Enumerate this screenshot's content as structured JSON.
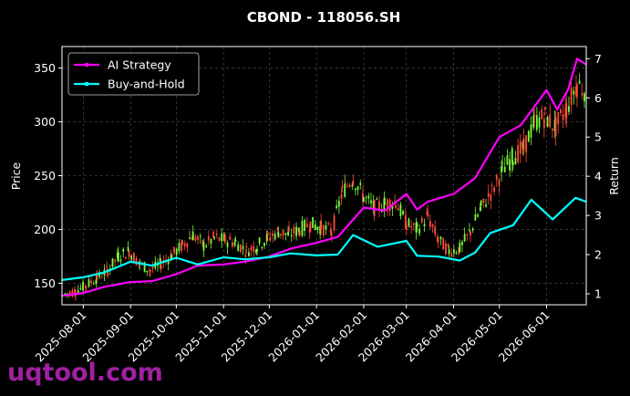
{
  "watermark": "uqtool.com",
  "chart_data": {
    "type": "line",
    "title": "CBOND - 118056.SH",
    "xlabel": "",
    "ylabel": "Price",
    "y2label": "Return",
    "background": "#000000",
    "grid": true,
    "legend_position": "top-left",
    "x_ticks": [
      "2025-08-01",
      "2025-09-01",
      "2025-10-01",
      "2025-11-01",
      "2025-12-01",
      "2026-01-01",
      "2026-02-01",
      "2026-03-01",
      "2026-04-01",
      "2026-05-01",
      "2026-06-01"
    ],
    "y_ticks": [
      150,
      200,
      250,
      300,
      350
    ],
    "y2_ticks": [
      1,
      2,
      3,
      4,
      5,
      6,
      7
    ],
    "xlim": [
      "2025-07-18",
      "2026-06-27"
    ],
    "ylim": [
      130,
      370
    ],
    "y2lim": [
      0.72,
      7.31
    ],
    "candlestick": {
      "up_color": "#7cfc3a",
      "down_color": "#ff4a3a",
      "close": [
        [
          "2025-07-20",
          140
        ],
        [
          "2025-07-27",
          143
        ],
        [
          "2025-08-03",
          148
        ],
        [
          "2025-08-10",
          155
        ],
        [
          "2025-08-17",
          162
        ],
        [
          "2025-08-24",
          175
        ],
        [
          "2025-08-31",
          180
        ],
        [
          "2025-09-07",
          168
        ],
        [
          "2025-09-14",
          162
        ],
        [
          "2025-09-21",
          168
        ],
        [
          "2025-09-28",
          176
        ],
        [
          "2025-10-05",
          185
        ],
        [
          "2025-10-12",
          195
        ],
        [
          "2025-10-19",
          185
        ],
        [
          "2025-10-26",
          192
        ],
        [
          "2025-11-02",
          190
        ],
        [
          "2025-11-09",
          188
        ],
        [
          "2025-11-16",
          180
        ],
        [
          "2025-11-23",
          185
        ],
        [
          "2025-11-30",
          192
        ],
        [
          "2025-12-07",
          198
        ],
        [
          "2025-12-14",
          195
        ],
        [
          "2025-12-21",
          200
        ],
        [
          "2025-12-28",
          205
        ],
        [
          "2026-01-04",
          202
        ],
        [
          "2026-01-11",
          198
        ],
        [
          "2026-01-18",
          235
        ],
        [
          "2026-01-25",
          248
        ],
        [
          "2026-02-01",
          230
        ],
        [
          "2026-02-08",
          220
        ],
        [
          "2026-02-15",
          224
        ],
        [
          "2026-02-22",
          226
        ],
        [
          "2026-03-01",
          205
        ],
        [
          "2026-03-08",
          200
        ],
        [
          "2026-03-15",
          212
        ],
        [
          "2026-03-22",
          190
        ],
        [
          "2026-03-29",
          180
        ],
        [
          "2026-04-05",
          182
        ],
        [
          "2026-04-12",
          198
        ],
        [
          "2026-04-19",
          220
        ],
        [
          "2026-04-26",
          235
        ],
        [
          "2026-05-03",
          255
        ],
        [
          "2026-05-10",
          268
        ],
        [
          "2026-05-17",
          275
        ],
        [
          "2026-05-24",
          300
        ],
        [
          "2026-05-31",
          305
        ],
        [
          "2026-06-07",
          295
        ],
        [
          "2026-06-14",
          312
        ],
        [
          "2026-06-21",
          335
        ],
        [
          "2026-06-26",
          330
        ]
      ]
    },
    "series": [
      {
        "name": "AI Strategy",
        "color": "#ff00ff",
        "axis": "right",
        "points": [
          [
            "2025-07-18",
            0.95
          ],
          [
            "2025-08-01",
            1.02
          ],
          [
            "2025-08-15",
            1.18
          ],
          [
            "2025-09-01",
            1.3
          ],
          [
            "2025-09-15",
            1.32
          ],
          [
            "2025-10-01",
            1.5
          ],
          [
            "2025-10-15",
            1.72
          ],
          [
            "2025-11-01",
            1.75
          ],
          [
            "2025-11-15",
            1.82
          ],
          [
            "2025-12-01",
            1.95
          ],
          [
            "2025-12-15",
            2.15
          ],
          [
            "2026-01-01",
            2.3
          ],
          [
            "2026-01-15",
            2.45
          ],
          [
            "2026-02-01",
            3.2
          ],
          [
            "2026-02-15",
            3.12
          ],
          [
            "2026-03-01",
            3.55
          ],
          [
            "2026-03-08",
            3.15
          ],
          [
            "2026-03-15",
            3.35
          ],
          [
            "2026-04-01",
            3.55
          ],
          [
            "2026-04-15",
            3.95
          ],
          [
            "2026-05-01",
            5.0
          ],
          [
            "2026-05-15",
            5.3
          ],
          [
            "2026-06-01",
            6.2
          ],
          [
            "2026-06-08",
            5.7
          ],
          [
            "2026-06-15",
            6.2
          ],
          [
            "2026-06-21",
            7.0
          ],
          [
            "2026-06-27",
            6.85
          ]
        ]
      },
      {
        "name": "Buy-and-Hold",
        "color": "#00ffff",
        "axis": "right",
        "points": [
          [
            "2025-07-18",
            1.35
          ],
          [
            "2025-08-01",
            1.42
          ],
          [
            "2025-08-15",
            1.55
          ],
          [
            "2025-09-01",
            1.82
          ],
          [
            "2025-09-15",
            1.72
          ],
          [
            "2025-10-01",
            1.92
          ],
          [
            "2025-10-15",
            1.75
          ],
          [
            "2025-11-01",
            1.93
          ],
          [
            "2025-11-15",
            1.88
          ],
          [
            "2025-12-01",
            1.93
          ],
          [
            "2025-12-15",
            2.03
          ],
          [
            "2026-01-01",
            1.98
          ],
          [
            "2026-01-15",
            2.0
          ],
          [
            "2026-01-25",
            2.5
          ],
          [
            "2026-02-10",
            2.2
          ],
          [
            "2026-03-01",
            2.35
          ],
          [
            "2026-03-08",
            1.97
          ],
          [
            "2026-03-22",
            1.95
          ],
          [
            "2026-04-05",
            1.85
          ],
          [
            "2026-04-15",
            2.05
          ],
          [
            "2026-04-25",
            2.55
          ],
          [
            "2026-05-10",
            2.75
          ],
          [
            "2026-05-22",
            3.4
          ],
          [
            "2026-06-05",
            2.9
          ],
          [
            "2026-06-20",
            3.45
          ],
          [
            "2026-06-27",
            3.35
          ]
        ]
      }
    ]
  }
}
